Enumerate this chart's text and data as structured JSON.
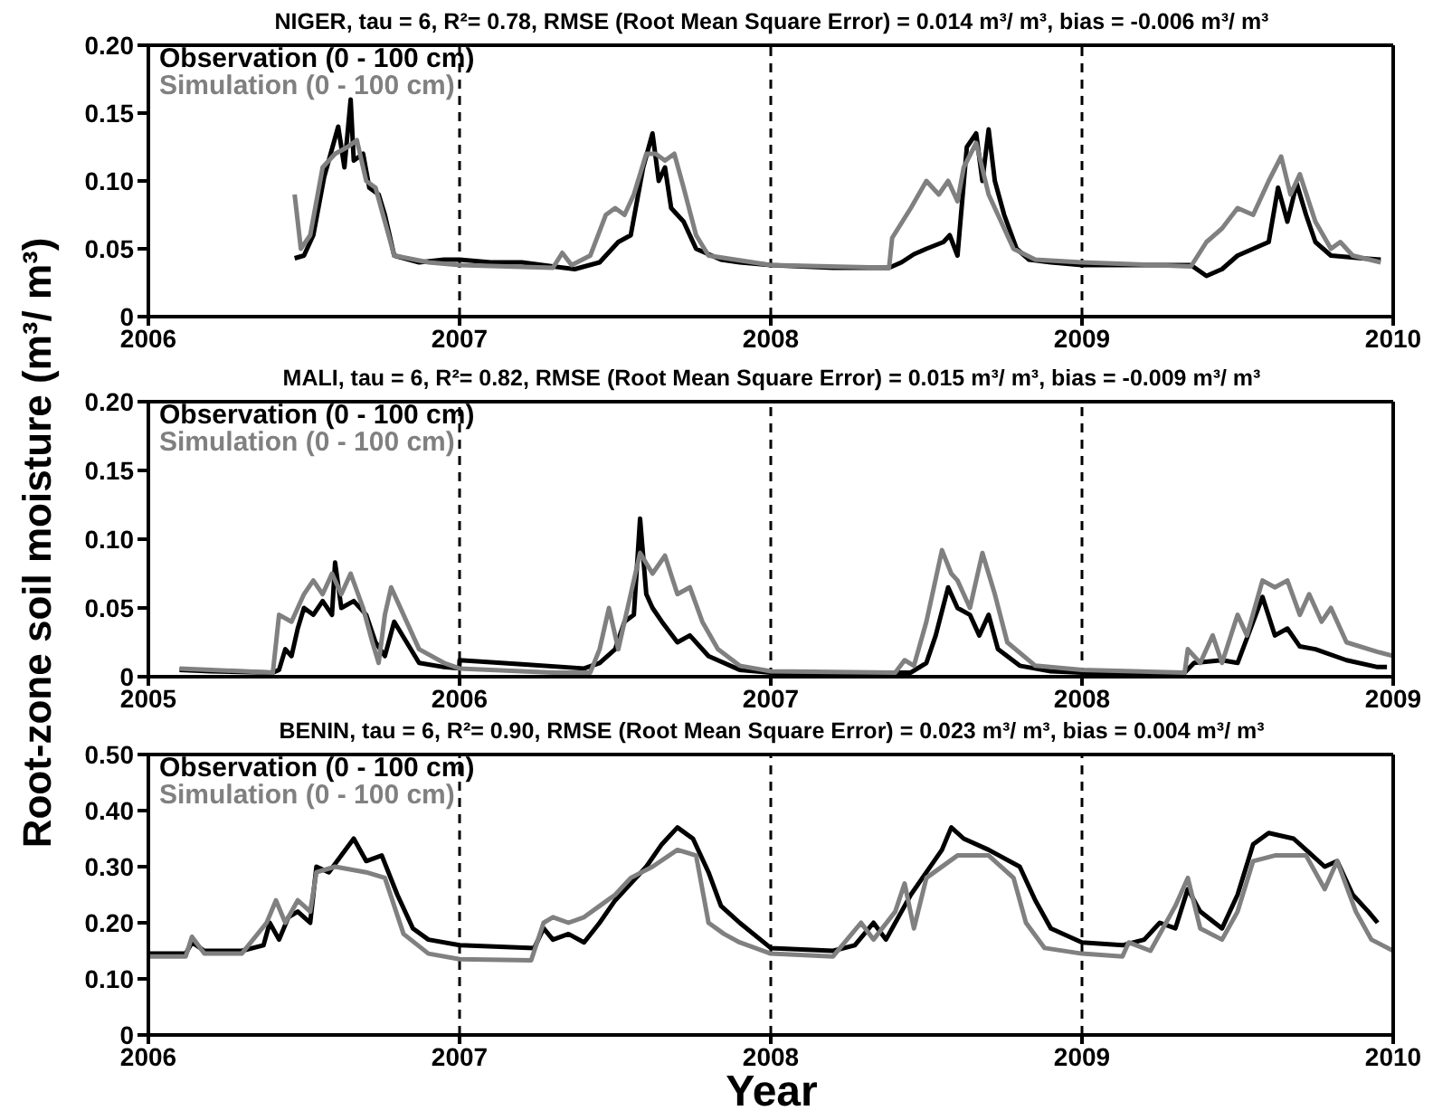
{
  "chart_data": [
    {
      "type": "line",
      "title": "NIGER, tau = 6, R²= 0.78, RMSE (Root Mean Square Error) = 0.014 m³/ m³, bias = -0.006 m³/ m³",
      "xlim": [
        2006,
        2010
      ],
      "xticks": [
        2006,
        2007,
        2008,
        2009,
        2010
      ],
      "ylim": [
        0,
        0.2
      ],
      "yticks": [
        0,
        0.05,
        {
          "value": 0.1,
          "label": "0.10"
        },
        0.15,
        {
          "value": 0.2,
          "label": "0.20"
        }
      ],
      "legend": "top left",
      "ref_lines": [
        {
          "axis": "x",
          "value": 2007,
          "line_style": "dashed",
          "color": "#000000"
        },
        {
          "axis": "x",
          "value": 2008,
          "line_style": "dashed",
          "color": "#000000"
        },
        {
          "axis": "x",
          "value": 2009,
          "line_style": "dashed",
          "color": "#000000"
        }
      ],
      "series": [
        {
          "name": "Observation (0 - 100 cm)",
          "color": "#000000",
          "x": [
            2006.47,
            2006.5,
            2006.53,
            2006.565,
            2006.61,
            2006.63,
            2006.65,
            2006.66,
            2006.69,
            2006.71,
            2006.74,
            2006.76,
            2006.79,
            2006.87,
            2006.95,
            2007.0,
            2007.1,
            2007.2,
            2007.3,
            2007.37,
            2007.45,
            2007.51,
            2007.55,
            2007.59,
            2007.62,
            2007.64,
            2007.66,
            2007.68,
            2007.72,
            2007.76,
            2007.84,
            2007.9,
            2008.0,
            2008.2,
            2008.38,
            2008.42,
            2008.46,
            2008.5,
            2008.555,
            2008.575,
            2008.6,
            2008.63,
            2008.66,
            2008.68,
            2008.7,
            2008.72,
            2008.75,
            2008.79,
            2008.83,
            2008.9,
            2009.0,
            2009.2,
            2009.35,
            2009.4,
            2009.45,
            2009.5,
            2009.55,
            2009.6,
            2009.63,
            2009.66,
            2009.69,
            2009.72,
            2009.75,
            2009.8,
            2009.9,
            2009.96
          ],
          "values": [
            0.043,
            0.045,
            0.06,
            0.103,
            0.14,
            0.11,
            0.16,
            0.115,
            0.12,
            0.095,
            0.09,
            0.075,
            0.045,
            0.04,
            0.042,
            0.042,
            0.04,
            0.04,
            0.037,
            0.035,
            0.04,
            0.055,
            0.06,
            0.11,
            0.135,
            0.1,
            0.11,
            0.08,
            0.07,
            0.05,
            0.042,
            0.04,
            0.038,
            0.036,
            0.036,
            0.04,
            0.046,
            0.05,
            0.055,
            0.06,
            0.045,
            0.125,
            0.135,
            0.1,
            0.138,
            0.1,
            0.075,
            0.05,
            0.042,
            0.04,
            0.038,
            0.038,
            0.038,
            0.03,
            0.035,
            0.045,
            0.05,
            0.055,
            0.095,
            0.07,
            0.098,
            0.075,
            0.055,
            0.045,
            0.043,
            0.042
          ]
        },
        {
          "name": "Simulation (0 - 100 cm)",
          "color": "#808080",
          "x": [
            2006.47,
            2006.49,
            2006.52,
            2006.56,
            2006.6,
            2006.64,
            2006.67,
            2006.7,
            2006.73,
            2006.76,
            2006.79,
            2006.9,
            2007.0,
            2007.3,
            2007.33,
            2007.36,
            2007.42,
            2007.47,
            2007.5,
            2007.53,
            2007.56,
            2007.6,
            2007.63,
            2007.66,
            2007.69,
            2007.72,
            2007.76,
            2007.8,
            2008.0,
            2008.38,
            2008.39,
            2008.45,
            2008.5,
            2008.54,
            2008.57,
            2008.6,
            2008.62,
            2008.66,
            2008.7,
            2008.74,
            2008.78,
            2008.85,
            2009.0,
            2009.35,
            2009.4,
            2009.45,
            2009.5,
            2009.55,
            2009.6,
            2009.64,
            2009.67,
            2009.7,
            2009.75,
            2009.8,
            2009.83,
            2009.87,
            2009.96
          ],
          "values": [
            0.09,
            0.05,
            0.06,
            0.11,
            0.12,
            0.125,
            0.13,
            0.1,
            0.095,
            0.07,
            0.045,
            0.04,
            0.038,
            0.036,
            0.047,
            0.038,
            0.045,
            0.075,
            0.08,
            0.075,
            0.09,
            0.12,
            0.12,
            0.115,
            0.12,
            0.095,
            0.06,
            0.045,
            0.038,
            0.036,
            0.058,
            0.08,
            0.1,
            0.09,
            0.1,
            0.085,
            0.11,
            0.128,
            0.09,
            0.07,
            0.05,
            0.042,
            0.04,
            0.037,
            0.055,
            0.065,
            0.08,
            0.075,
            0.1,
            0.118,
            0.09,
            0.105,
            0.07,
            0.05,
            0.055,
            0.045,
            0.04
          ]
        }
      ]
    },
    {
      "type": "line",
      "title": "MALI, tau = 6, R²= 0.82, RMSE (Root Mean Square Error) = 0.015 m³/ m³, bias = -0.009 m³/ m³",
      "ylabel": "Root-zone soil moisture (m³/ m³)",
      "xlim": [
        2005,
        2009
      ],
      "xticks": [
        2005,
        2006,
        2007,
        2008,
        2009
      ],
      "ylim": [
        0,
        0.2
      ],
      "yticks": [
        0,
        0.05,
        {
          "value": 0.1,
          "label": "0.10"
        },
        0.15,
        {
          "value": 0.2,
          "label": "0.20"
        }
      ],
      "legend": "top left",
      "ref_lines": [
        {
          "axis": "x",
          "value": 2006,
          "line_style": "dashed",
          "color": "#000000"
        },
        {
          "axis": "x",
          "value": 2007,
          "line_style": "dashed",
          "color": "#000000"
        },
        {
          "axis": "x",
          "value": 2008,
          "line_style": "dashed",
          "color": "#000000"
        }
      ],
      "series": [
        {
          "name": "Observation (0 - 100 cm)",
          "color": "#000000",
          "x": [
            2005.1,
            2005.2,
            2005.4,
            2005.42,
            2005.44,
            2005.46,
            2005.48,
            2005.5,
            2005.53,
            2005.56,
            2005.59,
            2005.6,
            2005.62,
            2005.66,
            2005.7,
            2005.73,
            2005.76,
            2005.79,
            2005.83,
            2005.87,
            2005.95,
            2005.999,
            2006.0,
            2006.2,
            2006.4,
            2006.45,
            2006.5,
            2006.53,
            2006.56,
            2006.58,
            2006.6,
            2006.62,
            2006.65,
            2006.7,
            2006.74,
            2006.8,
            2006.9,
            2007.0,
            2007.45,
            2007.5,
            2007.53,
            2007.57,
            2007.6,
            2007.64,
            2007.67,
            2007.7,
            2007.73,
            2007.8,
            2007.9,
            2008.0,
            2008.33,
            2008.36,
            2008.45,
            2008.5,
            2008.58,
            2008.62,
            2008.66,
            2008.7,
            2008.75,
            2008.85,
            2008.95,
            2008.98
          ],
          "values": [
            0.005,
            0.004,
            0.003,
            0.005,
            0.02,
            0.015,
            0.035,
            0.05,
            0.045,
            0.055,
            0.045,
            0.083,
            0.05,
            0.055,
            0.045,
            0.025,
            0.015,
            0.04,
            0.025,
            0.01,
            0.007,
            0.006,
            0.012,
            0.009,
            0.006,
            0.01,
            0.02,
            0.04,
            0.045,
            0.115,
            0.06,
            0.05,
            0.04,
            0.025,
            0.03,
            0.015,
            0.005,
            0.003,
            0.003,
            0.01,
            0.03,
            0.065,
            0.05,
            0.045,
            0.03,
            0.045,
            0.02,
            0.008,
            0.004,
            0.003,
            0.003,
            0.01,
            0.012,
            0.01,
            0.058,
            0.03,
            0.035,
            0.022,
            0.02,
            0.012,
            0.007,
            0.007
          ]
        },
        {
          "name": "Simulation (0 - 100 cm)",
          "color": "#808080",
          "x": [
            2005.1,
            2005.4,
            2005.42,
            2005.46,
            2005.5,
            2005.53,
            2005.56,
            2005.59,
            2005.62,
            2005.65,
            2005.69,
            2005.72,
            2005.74,
            2005.76,
            2005.78,
            2005.82,
            2005.87,
            2005.95,
            2006.0,
            2006.3,
            2006.42,
            2006.45,
            2006.48,
            2006.51,
            2006.55,
            2006.58,
            2006.62,
            2006.66,
            2006.7,
            2006.74,
            2006.78,
            2006.83,
            2006.9,
            2007.0,
            2007.4,
            2007.43,
            2007.46,
            2007.5,
            2007.55,
            2007.58,
            2007.6,
            2007.64,
            2007.68,
            2007.72,
            2007.76,
            2007.85,
            2008.0,
            2008.33,
            2008.34,
            2008.38,
            2008.42,
            2008.45,
            2008.5,
            2008.53,
            2008.58,
            2008.62,
            2008.66,
            2008.7,
            2008.73,
            2008.77,
            2008.8,
            2008.85,
            2008.95,
            2009.0
          ],
          "values": [
            0.006,
            0.003,
            0.045,
            0.04,
            0.06,
            0.07,
            0.06,
            0.075,
            0.06,
            0.075,
            0.05,
            0.025,
            0.01,
            0.045,
            0.065,
            0.045,
            0.02,
            0.01,
            0.006,
            0.003,
            0.003,
            0.02,
            0.05,
            0.02,
            0.06,
            0.09,
            0.075,
            0.088,
            0.06,
            0.065,
            0.04,
            0.02,
            0.008,
            0.004,
            0.003,
            0.012,
            0.008,
            0.04,
            0.092,
            0.075,
            0.07,
            0.05,
            0.09,
            0.06,
            0.025,
            0.008,
            0.005,
            0.003,
            0.02,
            0.01,
            0.03,
            0.01,
            0.045,
            0.03,
            0.07,
            0.065,
            0.07,
            0.045,
            0.06,
            0.04,
            0.05,
            0.025,
            0.018,
            0.015
          ]
        }
      ]
    },
    {
      "type": "line",
      "title": "BENIN, tau = 6, R²= 0.90, RMSE (Root Mean Square Error) = 0.023 m³/ m³, bias = 0.004 m³/ m³",
      "xlabel": "Year",
      "xlim": [
        2006,
        2010
      ],
      "xticks": [
        2006,
        2007,
        2008,
        2009,
        2010
      ],
      "ylim": [
        0,
        0.5
      ],
      "yticks": [
        0,
        {
          "value": 0.1,
          "label": "0.10"
        },
        {
          "value": 0.2,
          "label": "0.20"
        },
        {
          "value": 0.3,
          "label": "0.30"
        },
        {
          "value": 0.4,
          "label": "0.40"
        },
        {
          "value": 0.5,
          "label": "0.50"
        }
      ],
      "legend": "top left",
      "ref_lines": [
        {
          "axis": "x",
          "value": 2007,
          "line_style": "dashed",
          "color": "#000000"
        },
        {
          "axis": "x",
          "value": 2008,
          "line_style": "dashed",
          "color": "#000000"
        },
        {
          "axis": "x",
          "value": 2009,
          "line_style": "dashed",
          "color": "#000000"
        }
      ],
      "series": [
        {
          "name": "Observation (0 - 100 cm)",
          "color": "#000000",
          "x": [
            2006.0,
            2006.12,
            2006.14,
            2006.18,
            2006.3,
            2006.37,
            2006.39,
            2006.42,
            2006.45,
            2006.48,
            2006.52,
            2006.54,
            2006.58,
            2006.62,
            2006.66,
            2006.7,
            2006.75,
            2006.8,
            2006.85,
            2006.9,
            2007.0,
            2007.24,
            2007.27,
            2007.3,
            2007.35,
            2007.4,
            2007.45,
            2007.5,
            2007.55,
            2007.6,
            2007.65,
            2007.7,
            2007.75,
            2007.8,
            2007.84,
            2007.9,
            2008.0,
            2008.2,
            2008.27,
            2008.33,
            2008.37,
            2008.42,
            2008.45,
            2008.5,
            2008.55,
            2008.58,
            2008.62,
            2008.7,
            2008.8,
            2008.85,
            2008.9,
            2009.0,
            2009.13,
            2009.2,
            2009.25,
            2009.3,
            2009.34,
            2009.38,
            2009.45,
            2009.5,
            2009.55,
            2009.6,
            2009.68,
            2009.72,
            2009.78,
            2009.82,
            2009.87,
            2009.92,
            2009.95
          ],
          "values": [
            0.145,
            0.145,
            0.165,
            0.15,
            0.15,
            0.16,
            0.2,
            0.17,
            0.21,
            0.22,
            0.2,
            0.3,
            0.29,
            0.32,
            0.35,
            0.31,
            0.32,
            0.25,
            0.19,
            0.17,
            0.16,
            0.155,
            0.19,
            0.17,
            0.18,
            0.165,
            0.2,
            0.24,
            0.27,
            0.3,
            0.34,
            0.37,
            0.35,
            0.29,
            0.23,
            0.2,
            0.155,
            0.15,
            0.16,
            0.2,
            0.17,
            0.22,
            0.25,
            0.29,
            0.33,
            0.37,
            0.35,
            0.33,
            0.3,
            0.24,
            0.19,
            0.165,
            0.16,
            0.17,
            0.2,
            0.19,
            0.26,
            0.22,
            0.19,
            0.25,
            0.34,
            0.36,
            0.35,
            0.33,
            0.3,
            0.31,
            0.25,
            0.22,
            0.2
          ]
        },
        {
          "name": "Simulation (0 - 100 cm)",
          "color": "#808080",
          "x": [
            2006.0,
            2006.12,
            2006.14,
            2006.18,
            2006.3,
            2006.38,
            2006.41,
            2006.44,
            2006.48,
            2006.52,
            2006.54,
            2006.6,
            2006.7,
            2006.76,
            2006.82,
            2006.9,
            2007.0,
            2007.23,
            2007.27,
            2007.3,
            2007.35,
            2007.4,
            2007.45,
            2007.5,
            2007.55,
            2007.62,
            2007.7,
            2007.76,
            2007.8,
            2007.85,
            2007.9,
            2008.0,
            2008.2,
            2008.26,
            2008.29,
            2008.33,
            2008.4,
            2008.43,
            2008.46,
            2008.5,
            2008.6,
            2008.7,
            2008.78,
            2008.82,
            2008.88,
            2009.0,
            2009.13,
            2009.15,
            2009.22,
            2009.3,
            2009.34,
            2009.38,
            2009.45,
            2009.5,
            2009.55,
            2009.62,
            2009.72,
            2009.78,
            2009.82,
            2009.88,
            2009.93,
            2010.0
          ],
          "values": [
            0.14,
            0.14,
            0.175,
            0.145,
            0.145,
            0.2,
            0.24,
            0.2,
            0.24,
            0.22,
            0.29,
            0.3,
            0.29,
            0.28,
            0.18,
            0.145,
            0.135,
            0.133,
            0.2,
            0.21,
            0.2,
            0.21,
            0.23,
            0.25,
            0.28,
            0.3,
            0.33,
            0.32,
            0.2,
            0.18,
            0.165,
            0.145,
            0.14,
            0.18,
            0.2,
            0.17,
            0.22,
            0.27,
            0.19,
            0.28,
            0.32,
            0.32,
            0.28,
            0.2,
            0.155,
            0.145,
            0.14,
            0.165,
            0.15,
            0.23,
            0.28,
            0.19,
            0.17,
            0.22,
            0.31,
            0.32,
            0.32,
            0.26,
            0.31,
            0.22,
            0.17,
            0.15
          ]
        }
      ]
    }
  ]
}
